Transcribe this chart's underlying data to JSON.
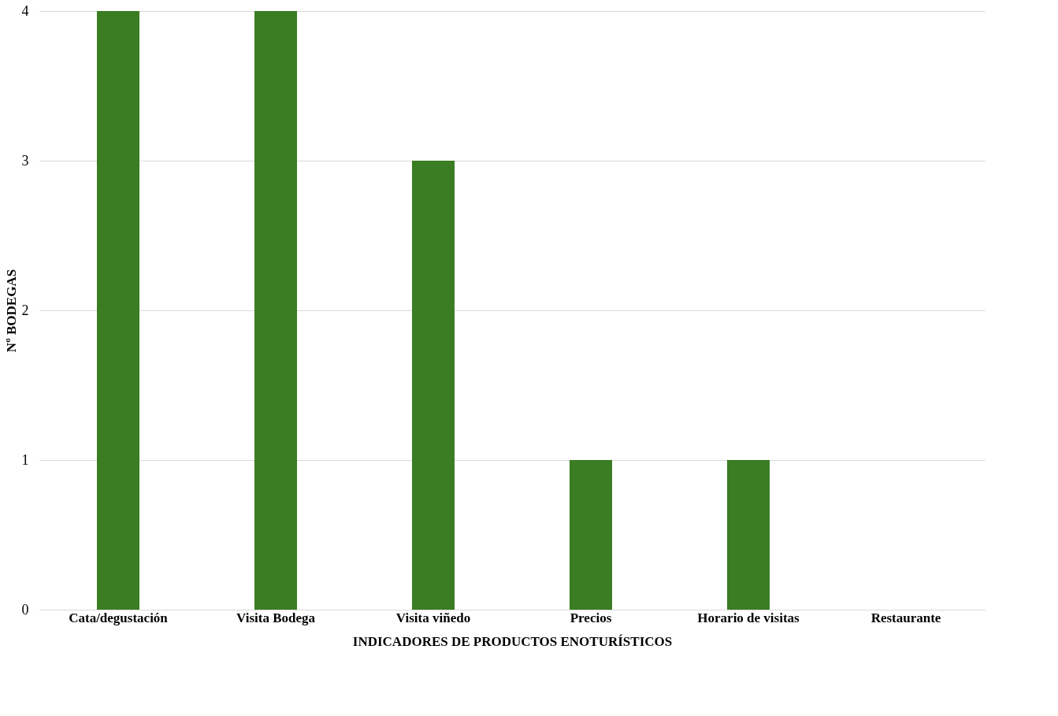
{
  "chart_data": {
    "type": "bar",
    "xlabel": "INDICADORES DE PRODUCTOS ENOTURÍSTICOS",
    "ylabel": "Nº BODEGAS",
    "categories": [
      "Cata/degustación",
      "Visita Bodega",
      "Visita viñedo",
      "Precios",
      "Horario de visitas",
      "Restaurante"
    ],
    "values": [
      4,
      4,
      3,
      1,
      1,
      0
    ],
    "color": "#3a7d22",
    "ylim": [
      0,
      4
    ],
    "yticks": [
      0,
      1,
      2,
      3,
      4
    ],
    "grid": "y"
  }
}
